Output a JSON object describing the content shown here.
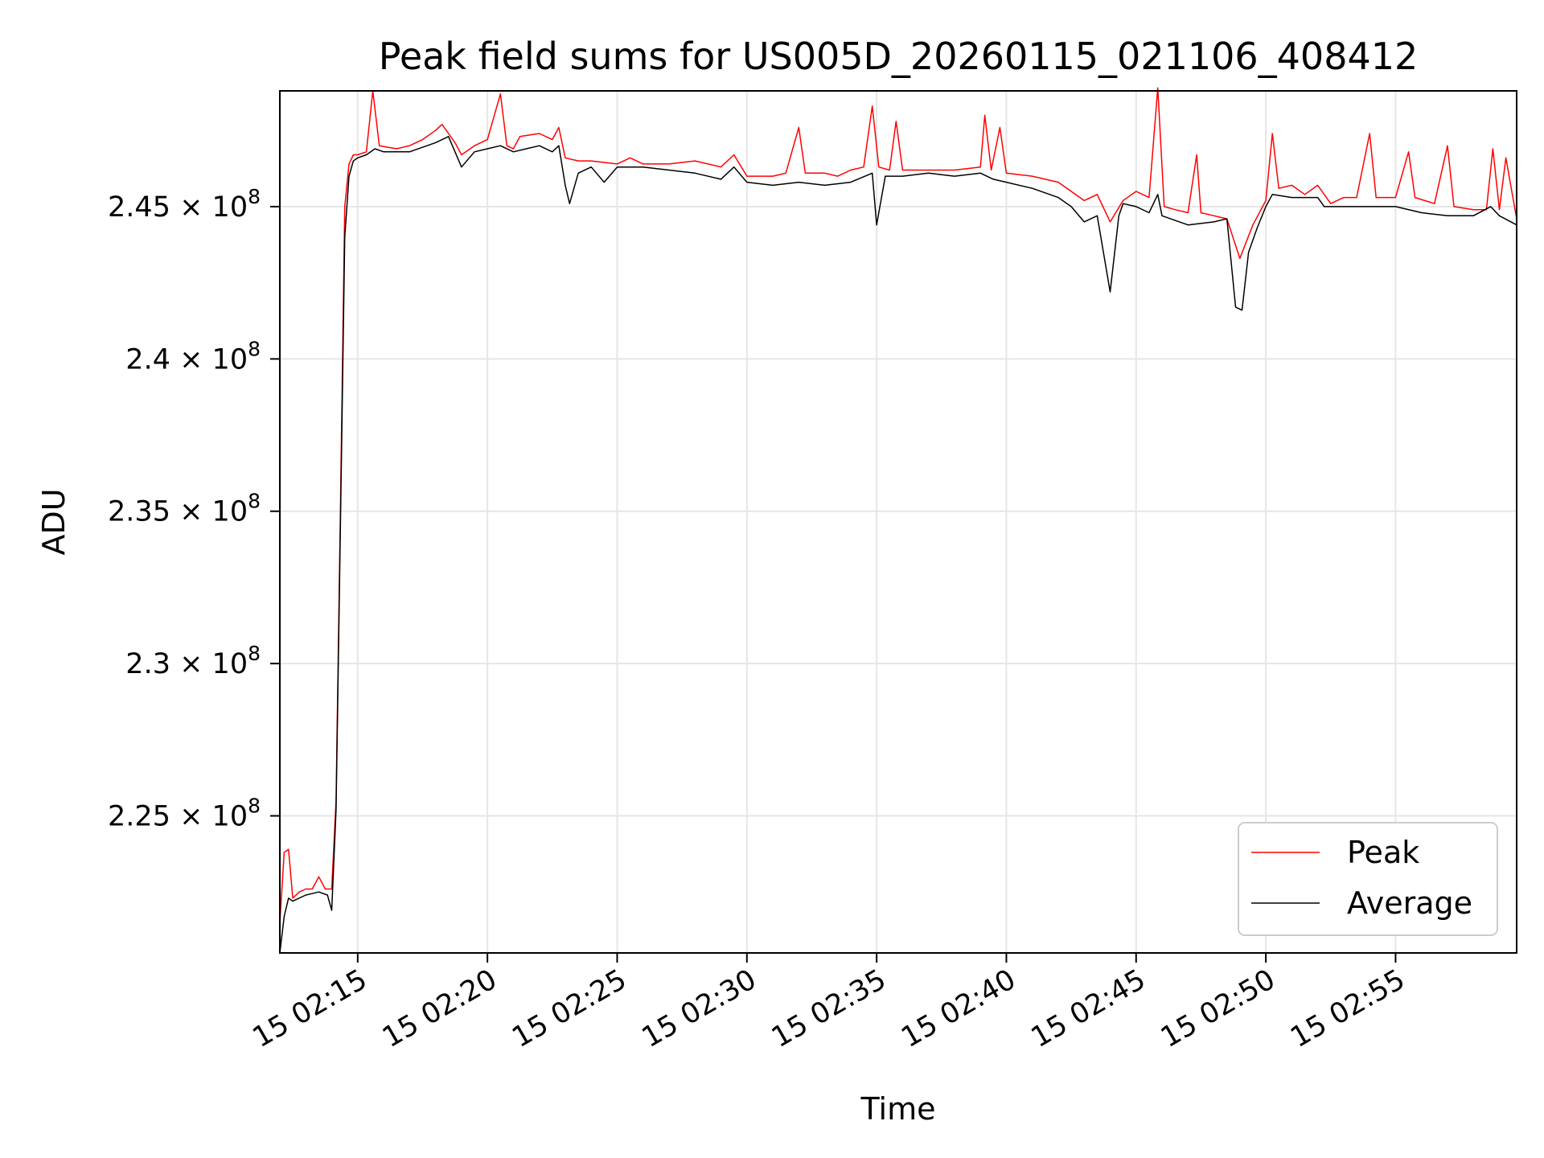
{
  "chart_data": {
    "type": "line",
    "title": "Peak field sums for US005D_20260115_021106_408412",
    "xlabel": "Time",
    "ylabel": "ADU",
    "xlim": [
      "15 02:12:00",
      "15 02:59:40"
    ],
    "ylim": [
      220500000,
      248800000
    ],
    "x_ticks": [
      {
        "label": "15 02:15",
        "value": "15 02:15"
      },
      {
        "label": "15 02:20",
        "value": "15 02:20"
      },
      {
        "label": "15 02:25",
        "value": "15 02:25"
      },
      {
        "label": "15 02:30",
        "value": "15 02:30"
      },
      {
        "label": "15 02:35",
        "value": "15 02:35"
      },
      {
        "label": "15 02:40",
        "value": "15 02:40"
      },
      {
        "label": "15 02:45",
        "value": "15 02:45"
      },
      {
        "label": "15 02:50",
        "value": "15 02:50"
      },
      {
        "label": "15 02:55",
        "value": "15 02:55"
      }
    ],
    "y_ticks": [
      {
        "mantissa": "2.25",
        "value": 225000000
      },
      {
        "mantissa": "2.3",
        "value": 230000000
      },
      {
        "mantissa": "2.35",
        "value": 235000000
      },
      {
        "mantissa": "2.4",
        "value": 240000000
      },
      {
        "mantissa": "2.45",
        "value": 245000000
      }
    ],
    "y_tick_suffix": "× 10",
    "y_tick_exponent": "8",
    "grid": true,
    "legend_position": "lower-right",
    "series": [
      {
        "name": "Peak",
        "color": "#ff0000",
        "points": [
          [
            "15 02:12:00",
            221500000
          ],
          [
            "15 02:12:10",
            223800000
          ],
          [
            "15 02:12:20",
            223900000
          ],
          [
            "15 02:12:30",
            222300000
          ],
          [
            "15 02:12:45",
            222500000
          ],
          [
            "15 02:13:00",
            222600000
          ],
          [
            "15 02:13:15",
            222600000
          ],
          [
            "15 02:13:30",
            223000000
          ],
          [
            "15 02:13:45",
            222600000
          ],
          [
            "15 02:14:00",
            222600000
          ],
          [
            "15 02:14:10",
            225500000
          ],
          [
            "15 02:14:20",
            235000000
          ],
          [
            "15 02:14:30",
            245000000
          ],
          [
            "15 02:14:40",
            246400000
          ],
          [
            "15 02:14:50",
            246700000
          ],
          [
            "15 02:15:00",
            246700000
          ],
          [
            "15 02:15:20",
            246800000
          ],
          [
            "15 02:15:35",
            248800000
          ],
          [
            "15 02:15:50",
            247000000
          ],
          [
            "15 02:16:30",
            246900000
          ],
          [
            "15 02:17:00",
            247000000
          ],
          [
            "15 02:17:30",
            247200000
          ],
          [
            "15 02:18:00",
            247500000
          ],
          [
            "15 02:18:15",
            247700000
          ],
          [
            "15 02:18:30",
            247400000
          ],
          [
            "15 02:18:45",
            247100000
          ],
          [
            "15 02:19:00",
            246700000
          ],
          [
            "15 02:19:30",
            247000000
          ],
          [
            "15 02:20:00",
            247200000
          ],
          [
            "15 02:20:30",
            248700000
          ],
          [
            "15 02:20:45",
            247000000
          ],
          [
            "15 02:21:00",
            246900000
          ],
          [
            "15 02:21:15",
            247300000
          ],
          [
            "15 02:22:00",
            247400000
          ],
          [
            "15 02:22:30",
            247200000
          ],
          [
            "15 02:22:45",
            247600000
          ],
          [
            "15 02:23:00",
            246600000
          ],
          [
            "15 02:23:30",
            246500000
          ],
          [
            "15 02:24:00",
            246500000
          ],
          [
            "15 02:25:00",
            246400000
          ],
          [
            "15 02:25:30",
            246600000
          ],
          [
            "15 02:26:00",
            246400000
          ],
          [
            "15 02:27:00",
            246400000
          ],
          [
            "15 02:28:00",
            246500000
          ],
          [
            "15 02:29:00",
            246300000
          ],
          [
            "15 02:29:30",
            246700000
          ],
          [
            "15 02:30:00",
            246000000
          ],
          [
            "15 02:31:00",
            246000000
          ],
          [
            "15 02:31:30",
            246100000
          ],
          [
            "15 02:32:00",
            247600000
          ],
          [
            "15 02:32:15",
            246100000
          ],
          [
            "15 02:33:00",
            246100000
          ],
          [
            "15 02:33:30",
            246000000
          ],
          [
            "15 02:34:00",
            246200000
          ],
          [
            "15 02:34:30",
            246300000
          ],
          [
            "15 02:34:50",
            248300000
          ],
          [
            "15 02:35:05",
            246300000
          ],
          [
            "15 02:35:30",
            246200000
          ],
          [
            "15 02:35:45",
            247800000
          ],
          [
            "15 02:36:00",
            246200000
          ],
          [
            "15 02:37:00",
            246200000
          ],
          [
            "15 02:38:00",
            246200000
          ],
          [
            "15 02:39:00",
            246300000
          ],
          [
            "15 02:39:10",
            248000000
          ],
          [
            "15 02:39:25",
            246200000
          ],
          [
            "15 02:39:45",
            247600000
          ],
          [
            "15 02:40:00",
            246100000
          ],
          [
            "15 02:41:00",
            246000000
          ],
          [
            "15 02:42:00",
            245800000
          ],
          [
            "15 02:42:30",
            245500000
          ],
          [
            "15 02:43:00",
            245200000
          ],
          [
            "15 02:43:30",
            245400000
          ],
          [
            "15 02:44:00",
            244500000
          ],
          [
            "15 02:44:30",
            245200000
          ],
          [
            "15 02:45:00",
            245500000
          ],
          [
            "15 02:45:30",
            245300000
          ],
          [
            "15 02:45:50",
            248900000
          ],
          [
            "15 02:46:05",
            245000000
          ],
          [
            "15 02:46:30",
            244900000
          ],
          [
            "15 02:47:00",
            244800000
          ],
          [
            "15 02:47:20",
            246700000
          ],
          [
            "15 02:47:30",
            244800000
          ],
          [
            "15 02:48:00",
            244700000
          ],
          [
            "15 02:48:30",
            244600000
          ],
          [
            "15 02:49:00",
            243300000
          ],
          [
            "15 02:49:30",
            244400000
          ],
          [
            "15 02:50:00",
            245200000
          ],
          [
            "15 02:50:15",
            247400000
          ],
          [
            "15 02:50:30",
            245600000
          ],
          [
            "15 02:51:00",
            245700000
          ],
          [
            "15 02:51:30",
            245400000
          ],
          [
            "15 02:52:00",
            245700000
          ],
          [
            "15 02:52:30",
            245100000
          ],
          [
            "15 02:53:00",
            245300000
          ],
          [
            "15 02:53:30",
            245300000
          ],
          [
            "15 02:54:00",
            247400000
          ],
          [
            "15 02:54:15",
            245300000
          ],
          [
            "15 02:55:00",
            245300000
          ],
          [
            "15 02:55:30",
            246800000
          ],
          [
            "15 02:55:45",
            245300000
          ],
          [
            "15 02:56:30",
            245100000
          ],
          [
            "15 02:57:00",
            247000000
          ],
          [
            "15 02:57:15",
            245000000
          ],
          [
            "15 02:58:00",
            244900000
          ],
          [
            "15 02:58:30",
            244900000
          ],
          [
            "15 02:58:45",
            246900000
          ],
          [
            "15 02:59:00",
            244900000
          ],
          [
            "15 02:59:15",
            246600000
          ],
          [
            "15 02:59:40",
            244600000
          ]
        ]
      },
      {
        "name": "Average",
        "color": "#000000",
        "points": [
          [
            "15 02:12:00",
            220500000
          ],
          [
            "15 02:12:10",
            221700000
          ],
          [
            "15 02:12:20",
            222300000
          ],
          [
            "15 02:12:30",
            222200000
          ],
          [
            "15 02:13:00",
            222400000
          ],
          [
            "15 02:13:30",
            222500000
          ],
          [
            "15 02:13:50",
            222400000
          ],
          [
            "15 02:14:00",
            221900000
          ],
          [
            "15 02:14:10",
            225200000
          ],
          [
            "15 02:14:20",
            234500000
          ],
          [
            "15 02:14:30",
            244000000
          ],
          [
            "15 02:14:40",
            246000000
          ],
          [
            "15 02:14:50",
            246500000
          ],
          [
            "15 02:15:00",
            246600000
          ],
          [
            "15 02:15:20",
            246700000
          ],
          [
            "15 02:15:40",
            246900000
          ],
          [
            "15 02:16:00",
            246800000
          ],
          [
            "15 02:17:00",
            246800000
          ],
          [
            "15 02:18:00",
            247100000
          ],
          [
            "15 02:18:30",
            247300000
          ],
          [
            "15 02:19:00",
            246300000
          ],
          [
            "15 02:19:30",
            246800000
          ],
          [
            "15 02:20:00",
            246900000
          ],
          [
            "15 02:20:30",
            247000000
          ],
          [
            "15 02:21:00",
            246800000
          ],
          [
            "15 02:21:30",
            246900000
          ],
          [
            "15 02:22:00",
            247000000
          ],
          [
            "15 02:22:30",
            246800000
          ],
          [
            "15 02:22:45",
            247000000
          ],
          [
            "15 02:23:00",
            245700000
          ],
          [
            "15 02:23:10",
            245100000
          ],
          [
            "15 02:23:30",
            246100000
          ],
          [
            "15 02:24:00",
            246300000
          ],
          [
            "15 02:24:30",
            245800000
          ],
          [
            "15 02:25:00",
            246300000
          ],
          [
            "15 02:26:00",
            246300000
          ],
          [
            "15 02:27:00",
            246200000
          ],
          [
            "15 02:28:00",
            246100000
          ],
          [
            "15 02:29:00",
            245900000
          ],
          [
            "15 02:29:30",
            246300000
          ],
          [
            "15 02:30:00",
            245800000
          ],
          [
            "15 02:31:00",
            245700000
          ],
          [
            "15 02:32:00",
            245800000
          ],
          [
            "15 02:33:00",
            245700000
          ],
          [
            "15 02:34:00",
            245800000
          ],
          [
            "15 02:34:50",
            246100000
          ],
          [
            "15 02:35:00",
            244400000
          ],
          [
            "15 02:35:20",
            246000000
          ],
          [
            "15 02:36:00",
            246000000
          ],
          [
            "15 02:37:00",
            246100000
          ],
          [
            "15 02:38:00",
            246000000
          ],
          [
            "15 02:39:00",
            246100000
          ],
          [
            "15 02:39:30",
            245900000
          ],
          [
            "15 02:40:00",
            245800000
          ],
          [
            "15 02:41:00",
            245600000
          ],
          [
            "15 02:42:00",
            245300000
          ],
          [
            "15 02:42:30",
            245000000
          ],
          [
            "15 02:43:00",
            244500000
          ],
          [
            "15 02:43:30",
            244700000
          ],
          [
            "15 02:44:00",
            242200000
          ],
          [
            "15 02:44:20",
            244700000
          ],
          [
            "15 02:44:30",
            245100000
          ],
          [
            "15 02:45:00",
            245000000
          ],
          [
            "15 02:45:30",
            244800000
          ],
          [
            "15 02:45:50",
            245400000
          ],
          [
            "15 02:46:00",
            244700000
          ],
          [
            "15 02:47:00",
            244400000
          ],
          [
            "15 02:48:00",
            244500000
          ],
          [
            "15 02:48:30",
            244600000
          ],
          [
            "15 02:48:50",
            241700000
          ],
          [
            "15 02:49:05",
            241600000
          ],
          [
            "15 02:49:20",
            243500000
          ],
          [
            "15 02:49:40",
            244300000
          ],
          [
            "15 02:50:00",
            245000000
          ],
          [
            "15 02:50:15",
            245400000
          ],
          [
            "15 02:51:00",
            245300000
          ],
          [
            "15 02:52:00",
            245300000
          ],
          [
            "15 02:52:15",
            245000000
          ],
          [
            "15 02:53:00",
            245000000
          ],
          [
            "15 02:54:00",
            245000000
          ],
          [
            "15 02:55:00",
            245000000
          ],
          [
            "15 02:56:00",
            244800000
          ],
          [
            "15 02:57:00",
            244700000
          ],
          [
            "15 02:58:00",
            244700000
          ],
          [
            "15 02:58:40",
            245000000
          ],
          [
            "15 02:59:00",
            244700000
          ],
          [
            "15 02:59:40",
            244400000
          ]
        ]
      }
    ]
  }
}
